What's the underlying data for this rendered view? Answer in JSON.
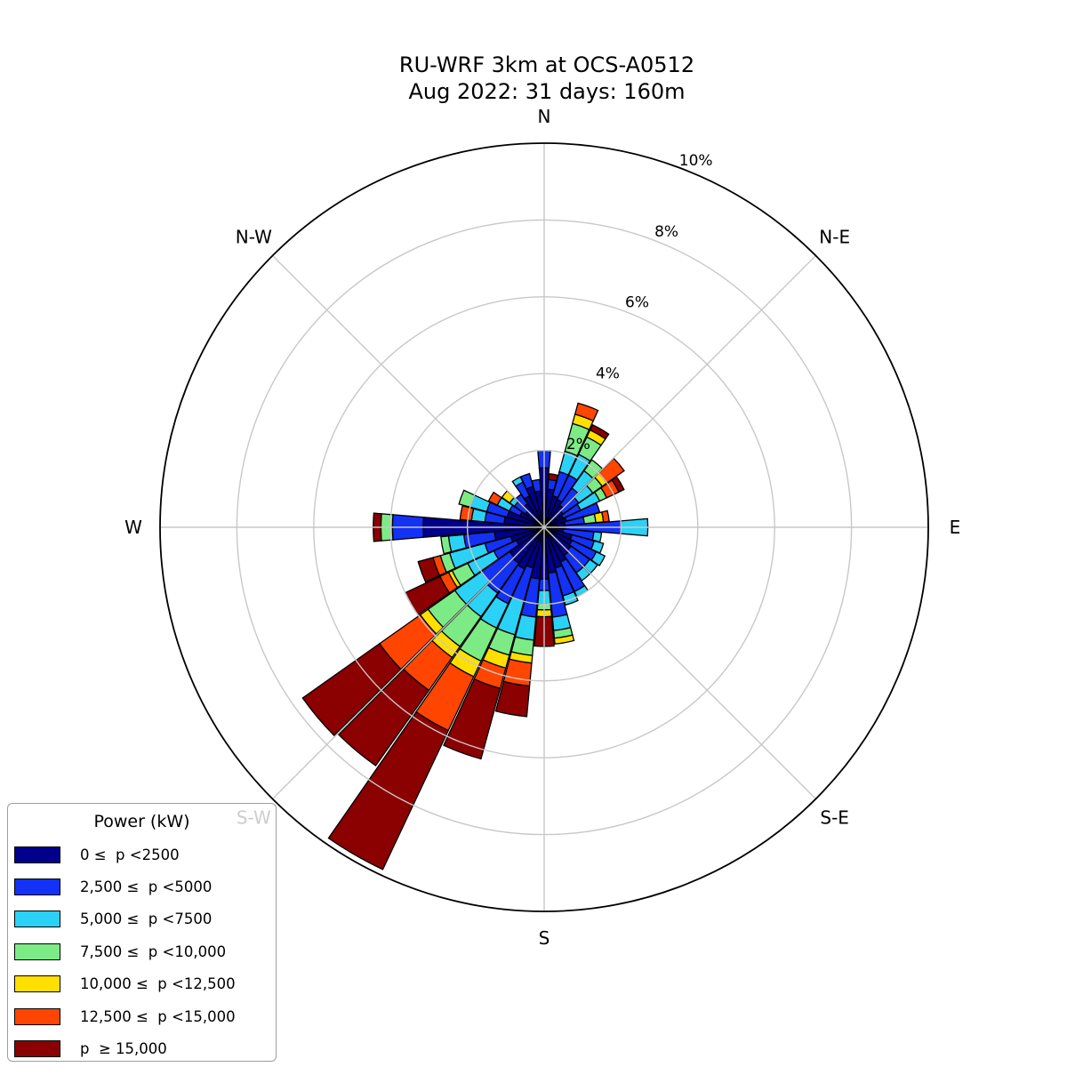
{
  "header": {
    "title": "RU-WRF 3km at OCS-A0512",
    "subtitle": "Aug 2022: 31 days: 160m"
  },
  "compass": [
    {
      "label": "N",
      "angle_deg": 0
    },
    {
      "label": "N-E",
      "angle_deg": 45
    },
    {
      "label": "E",
      "angle_deg": 90
    },
    {
      "label": "S-E",
      "angle_deg": 135
    },
    {
      "label": "S",
      "angle_deg": 180
    },
    {
      "label": "S-W",
      "angle_deg": 225
    },
    {
      "label": "W",
      "angle_deg": 270
    },
    {
      "label": "N-W",
      "angle_deg": 315
    }
  ],
  "legend": {
    "title": "Power (kW)"
  },
  "style": {
    "background": "#FFFFFF",
    "grid_color": "#C8C8C8",
    "outer_ring_color": "#000000",
    "petal_edge_color": "#000000",
    "text_color": "#000000",
    "occluded_label_color": "#C6C6C6"
  },
  "chart_data": {
    "type": "wind-rose (polar stacked bar)",
    "title": "RU-WRF 3km at OCS-A0512",
    "subtitle": "Aug 2022: 31 days: 160m",
    "units": "percent frequency of occurrence",
    "grid": true,
    "legend_position": "lower left",
    "tick_label_angle_deg": 22.5,
    "radial_ticks_pct": [
      2,
      4,
      6,
      8,
      10
    ],
    "radial_tick_labels": [
      "2%",
      "4%",
      "6%",
      "8%",
      "10%"
    ],
    "max_radius_pct": 10,
    "sector_width_deg": 10,
    "bins": [
      {
        "label": "0 ≤  p <2500",
        "color": "#00008B"
      },
      {
        "label": "2,500 ≤  p <5000",
        "color": "#1332F5"
      },
      {
        "label": "5,000 ≤  p <7500",
        "color": "#2BD2F6"
      },
      {
        "label": "7,500 ≤  p <10,000",
        "color": "#7DEB85"
      },
      {
        "label": "10,000 ≤  p <12,500",
        "color": "#FFDF00"
      },
      {
        "label": "12,500 ≤  p <15,000",
        "color": "#FF4500"
      },
      {
        "label": "p  ≥ 15,000",
        "color": "#8B0000"
      }
    ],
    "directions_deg": [
      0,
      10,
      20,
      30,
      40,
      50,
      60,
      70,
      80,
      90,
      100,
      110,
      120,
      130,
      140,
      150,
      160,
      170,
      180,
      190,
      200,
      210,
      220,
      230,
      240,
      250,
      260,
      270,
      280,
      290,
      300,
      310,
      320,
      330,
      340,
      350
    ],
    "frequencies_pct": [
      [
        1.55,
        0.45,
        0.0,
        0.0,
        0.0,
        0.0,
        0.0
      ],
      [
        1.0,
        0.25,
        0.0,
        0.0,
        0.0,
        0.0,
        0.15
      ],
      [
        0.85,
        0.65,
        0.55,
        0.75,
        0.25,
        0.3,
        0.0
      ],
      [
        0.8,
        0.7,
        0.6,
        0.5,
        0.2,
        0.0,
        0.15
      ],
      [
        0.7,
        0.55,
        0.55,
        0.35,
        0.0,
        0.0,
        0.0
      ],
      [
        0.6,
        0.5,
        0.45,
        0.3,
        0.15,
        0.55,
        0.0
      ],
      [
        0.55,
        0.5,
        0.55,
        0.2,
        0.0,
        0.35,
        0.15
      ],
      [
        0.6,
        0.9,
        0.0,
        0.0,
        0.0,
        0.0,
        0.0
      ],
      [
        0.55,
        0.5,
        0.0,
        0.3,
        0.2,
        0.15,
        0.0
      ],
      [
        0.55,
        1.45,
        0.7,
        0.0,
        0.0,
        0.0,
        0.0
      ],
      [
        0.5,
        0.8,
        0.2,
        0.0,
        0.0,
        0.0,
        0.0
      ],
      [
        0.75,
        0.6,
        0.25,
        0.0,
        0.0,
        0.0,
        0.0
      ],
      [
        0.8,
        0.7,
        0.25,
        0.0,
        0.0,
        0.0,
        0.0
      ],
      [
        0.85,
        0.6,
        0.25,
        0.0,
        0.0,
        0.0,
        0.0
      ],
      [
        0.9,
        0.55,
        0.25,
        0.0,
        0.0,
        0.0,
        0.0
      ],
      [
        1.0,
        0.85,
        0.15,
        0.0,
        0.0,
        0.0,
        0.0
      ],
      [
        1.1,
        0.75,
        0.25,
        0.0,
        0.0,
        0.0,
        0.0
      ],
      [
        1.2,
        1.15,
        0.35,
        0.2,
        0.15,
        0.0,
        0.0
      ],
      [
        1.35,
        0.3,
        0.35,
        0.15,
        0.18,
        0.0,
        0.77
      ],
      [
        1.35,
        1.0,
        0.6,
        0.4,
        0.2,
        0.6,
        0.8
      ],
      [
        1.1,
        0.9,
        0.9,
        0.55,
        0.35,
        0.55,
        1.9
      ],
      [
        1.2,
        1.0,
        0.7,
        0.95,
        0.45,
        1.55,
        4.0
      ],
      [
        1.15,
        0.95,
        0.75,
        0.95,
        0.35,
        1.05,
        2.4
      ],
      [
        1.1,
        0.9,
        0.85,
        0.85,
        0.25,
        1.3,
        2.45
      ],
      [
        0.8,
        0.65,
        0.75,
        0.45,
        0.1,
        0.25,
        1.0
      ],
      [
        0.9,
        0.7,
        0.95,
        0.25,
        0.0,
        0.2,
        0.4
      ],
      [
        1.3,
        0.8,
        0.4,
        0.2,
        0.0,
        0.0,
        0.0
      ],
      [
        3.15,
        0.8,
        0.0,
        0.3,
        0.0,
        0.0,
        0.2
      ],
      [
        1.05,
        0.5,
        0.35,
        0.0,
        0.0,
        0.3,
        0.0
      ],
      [
        1.0,
        0.55,
        0.45,
        0.3,
        0.0,
        0.0,
        0.0
      ],
      [
        0.7,
        0.3,
        0.35,
        0.0,
        0.0,
        0.25,
        0.0
      ],
      [
        0.6,
        0.35,
        0.15,
        0.0,
        0.25,
        0.0,
        0.0
      ],
      [
        0.75,
        0.3,
        0.0,
        0.0,
        0.0,
        0.0,
        0.0
      ],
      [
        0.9,
        0.4,
        0.15,
        0.0,
        0.0,
        0.0,
        0.0
      ],
      [
        1.1,
        0.35,
        0.0,
        0.0,
        0.0,
        0.0,
        0.0
      ],
      [
        0.95,
        0.3,
        0.0,
        0.0,
        0.0,
        0.0,
        0.0
      ]
    ]
  }
}
